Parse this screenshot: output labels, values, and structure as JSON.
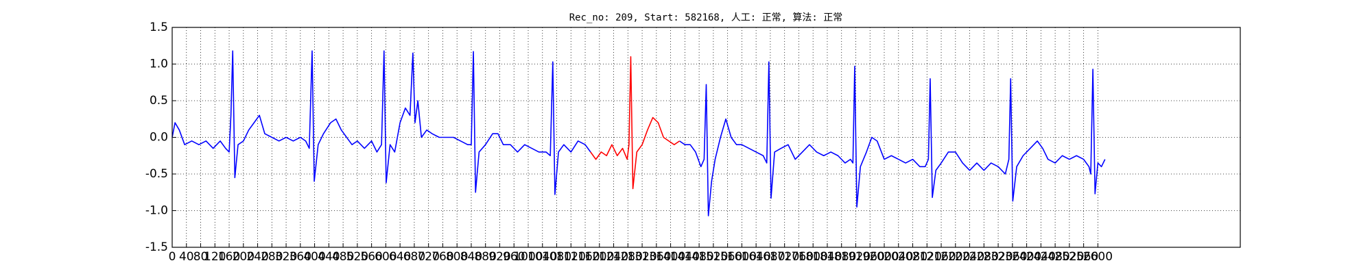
{
  "chart_data": {
    "type": "line",
    "title": "Rec_no: 209, Start: 582168, 人工: 正常, 算法: 正常",
    "xlim": [
      0,
      3000
    ],
    "xticks": [
      0,
      40,
      80,
      120,
      160,
      200,
      240,
      280,
      320,
      360,
      400,
      440,
      480,
      520,
      560,
      600,
      640,
      680,
      720,
      760,
      800,
      840,
      880,
      920,
      960,
      1000,
      1040,
      1080,
      1120,
      1160,
      1200,
      1240,
      1280,
      1320,
      1360,
      1400,
      1440,
      1480,
      1520,
      1560,
      1600,
      1640,
      1680,
      1720,
      1760,
      1800,
      1840,
      1880,
      1920,
      1960,
      2000,
      2040,
      2080,
      2120,
      2160,
      2200,
      2240,
      2280,
      2320,
      2360,
      2400,
      2440,
      2480,
      2520,
      2560,
      2600
    ],
    "ylim": [
      -1.5,
      1.5
    ],
    "yticks": [
      -1.5,
      {
        "value": -1,
        "label": "-1.0"
      },
      -0.5,
      {
        "value": 0,
        "label": "0.0"
      },
      0.5,
      {
        "value": 1,
        "label": "1.0"
      },
      1.5
    ],
    "grid": true,
    "series": [
      {
        "color": "#0000ff",
        "x": [
          0,
          8,
          20,
          35,
          55,
          75,
          95,
          115,
          135,
          150,
          160,
          165,
          170,
          176,
          185,
          200,
          215,
          230,
          245,
          260,
          280,
          300,
          320,
          340,
          360,
          375,
          385,
          393,
          399,
          410,
          425,
          445,
          460,
          475,
          490,
          505,
          520,
          540,
          560,
          575,
          588,
          595,
          601,
          612,
          625,
          640,
          655,
          668,
          676,
          682,
          690,
          700,
          715,
          730,
          750,
          770,
          790,
          810,
          830,
          840,
          846,
          852,
          862,
          880,
          900,
          915,
          930,
          950,
          970,
          990,
          1010,
          1030,
          1050,
          1062,
          1069,
          1075,
          1085,
          1100,
          1120,
          1140,
          1160,
          1175,
          1300,
          1425,
          1440,
          1455,
          1470,
          1485,
          1494,
          1500,
          1506,
          1515,
          1525,
          1540,
          1555,
          1570,
          1585,
          1600,
          1620,
          1640,
          1660,
          1670,
          1676,
          1682,
          1692,
          1710,
          1730,
          1750,
          1770,
          1790,
          1810,
          1830,
          1850,
          1870,
          1890,
          1905,
          1912,
          1917,
          1923,
          1933,
          1950,
          1965,
          1980,
          2000,
          2020,
          2040,
          2060,
          2080,
          2100,
          2115,
          2124,
          2129,
          2135,
          2145,
          2160,
          2180,
          2200,
          2220,
          2240,
          2260,
          2280,
          2300,
          2320,
          2340,
          2350,
          2355,
          2361,
          2372,
          2390,
          2410,
          2430,
          2445,
          2460,
          2480,
          2500,
          2520,
          2540,
          2560,
          2575,
          2580,
          2586,
          2592,
          2600,
          2610,
          2620
        ],
        "values": [
          0.0,
          0.2,
          0.1,
          -0.1,
          -0.05,
          -0.1,
          -0.05,
          -0.15,
          -0.05,
          -0.15,
          -0.2,
          0.3,
          1.18,
          -0.55,
          -0.1,
          -0.05,
          0.1,
          0.2,
          0.3,
          0.05,
          0.0,
          -0.05,
          0.0,
          -0.05,
          0.0,
          -0.05,
          -0.15,
          1.18,
          -0.6,
          -0.1,
          0.05,
          0.2,
          0.25,
          0.1,
          0.0,
          -0.1,
          -0.05,
          -0.15,
          -0.05,
          -0.2,
          -0.1,
          1.18,
          -0.62,
          -0.1,
          -0.2,
          0.2,
          0.4,
          0.3,
          1.15,
          0.2,
          0.5,
          0.0,
          0.1,
          0.05,
          0.0,
          0.0,
          0.0,
          -0.05,
          -0.1,
          -0.1,
          1.17,
          -0.75,
          -0.2,
          -0.1,
          0.05,
          0.05,
          -0.1,
          -0.1,
          -0.2,
          -0.1,
          -0.15,
          -0.2,
          -0.2,
          -0.25,
          1.03,
          -0.78,
          -0.2,
          -0.1,
          -0.2,
          -0.05,
          -0.1,
          -0.2,
          null,
          -0.05,
          -0.1,
          -0.1,
          -0.2,
          -0.4,
          -0.3,
          0.72,
          -1.07,
          -0.6,
          -0.3,
          0.0,
          0.25,
          0.0,
          -0.1,
          -0.1,
          -0.15,
          -0.2,
          -0.25,
          -0.35,
          1.03,
          -0.83,
          -0.2,
          -0.15,
          -0.1,
          -0.3,
          -0.2,
          -0.1,
          -0.2,
          -0.25,
          -0.2,
          -0.25,
          -0.35,
          -0.3,
          -0.35,
          0.97,
          -0.95,
          -0.4,
          -0.2,
          0.0,
          -0.05,
          -0.3,
          -0.25,
          -0.3,
          -0.35,
          -0.3,
          -0.4,
          -0.4,
          -0.3,
          0.8,
          -0.82,
          -0.45,
          -0.35,
          -0.2,
          -0.2,
          -0.35,
          -0.45,
          -0.35,
          -0.45,
          -0.35,
          -0.4,
          -0.5,
          -0.3,
          0.8,
          -0.87,
          -0.4,
          -0.25,
          -0.15,
          -0.05,
          -0.15,
          -0.3,
          -0.35,
          -0.25,
          -0.3,
          -0.25,
          -0.3,
          -0.4,
          -0.5,
          0.93,
          -0.77,
          -0.35,
          -0.4,
          -0.3
        ]
      },
      {
        "color": "#ff0000",
        "x": [
          1175,
          1190,
          1205,
          1220,
          1235,
          1250,
          1265,
          1278,
          1283,
          1288,
          1294,
          1305,
          1320,
          1335,
          1350,
          1365,
          1380,
          1395,
          1410,
          1425
        ],
        "values": [
          -0.2,
          -0.3,
          -0.2,
          -0.25,
          -0.1,
          -0.25,
          -0.15,
          -0.3,
          -0.1,
          1.1,
          -0.7,
          -0.2,
          -0.1,
          0.1,
          0.27,
          0.2,
          0.0,
          -0.05,
          -0.1,
          -0.05
        ]
      }
    ]
  }
}
